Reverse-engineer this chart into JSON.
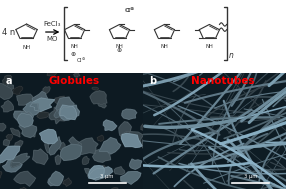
{
  "fig_width": 2.86,
  "fig_height": 1.89,
  "dpi": 100,
  "bg_color": "#ffffff",
  "label_a": "a",
  "label_b": "b",
  "label_globules": "Globules",
  "label_nanotubes": "Nanotubes",
  "label_color": "#ff0000",
  "label_ab_color": "#ffffff",
  "scalebar_text": "3 μm",
  "reagent_top": "FeCl₃",
  "reagent_bottom": "MO",
  "prefix": "4 n",
  "subscript_n": "n",
  "globules_bg": "#1a2830",
  "nanotubes_bg": "#1a2830",
  "pyrrole_color": "#333333",
  "bracket_color": "#333333"
}
